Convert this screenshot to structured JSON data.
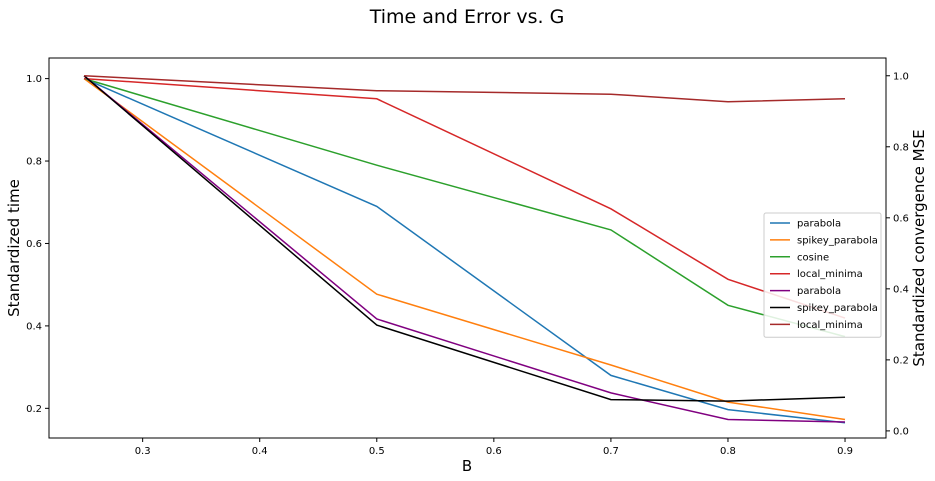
{
  "chart_data": {
    "type": "line",
    "title": "Time and Error vs. G",
    "xlabel": "B",
    "ylabel_left": "Standardized time",
    "ylabel_right": "Standardized convergence MSE",
    "xlim": [
      0.22,
      0.935
    ],
    "ylim_left": [
      0.128,
      1.05
    ],
    "ylim_right": [
      -0.02,
      1.05
    ],
    "xticks": [
      0.3,
      0.4,
      0.5,
      0.6,
      0.7,
      0.8,
      0.9
    ],
    "xtick_labels": [
      "0.3",
      "0.4",
      "0.5",
      "0.6",
      "0.7",
      "0.8",
      "0.9"
    ],
    "yticks_left": [
      0.2,
      0.4,
      0.6,
      0.8,
      1.0
    ],
    "ytick_labels_left": [
      "0.2",
      "0.4",
      "0.6",
      "0.8",
      "1.0"
    ],
    "yticks_right": [
      0.0,
      0.2,
      0.4,
      0.6,
      0.8,
      1.0
    ],
    "ytick_labels_right": [
      "0.0",
      "0.2",
      "0.4",
      "0.6",
      "0.8",
      "1.0"
    ],
    "x": [
      0.25,
      0.5,
      0.7,
      0.8,
      0.9
    ],
    "grid": false,
    "legend_position": "center-right",
    "series": [
      {
        "name": "parabola",
        "axis": "left",
        "color": "#1f77b4",
        "values": [
          1.0,
          0.69,
          0.28,
          0.197,
          0.165
        ]
      },
      {
        "name": "spikey_parabola",
        "axis": "left",
        "color": "#ff7f0e",
        "values": [
          1.0,
          0.477,
          0.305,
          0.215,
          0.173
        ]
      },
      {
        "name": "cosine",
        "axis": "left",
        "color": "#2ca02c",
        "values": [
          1.0,
          0.79,
          0.633,
          0.45,
          0.374
        ]
      },
      {
        "name": "local_minima",
        "axis": "left",
        "color": "#d62728",
        "values": [
          1.0,
          0.951,
          0.684,
          0.513,
          0.419
        ]
      },
      {
        "name": "parabola",
        "axis": "right",
        "color": "#800080",
        "values": [
          1.0,
          0.315,
          0.107,
          0.032,
          0.025
        ]
      },
      {
        "name": "spikey_parabola",
        "axis": "right",
        "color": "#000000",
        "values": [
          1.0,
          0.298,
          0.088,
          0.084,
          0.095
        ]
      },
      {
        "name": "local_minima",
        "axis": "right",
        "color": "#a52a2a",
        "values": [
          1.0,
          0.958,
          0.948,
          0.927,
          0.935
        ]
      }
    ]
  }
}
